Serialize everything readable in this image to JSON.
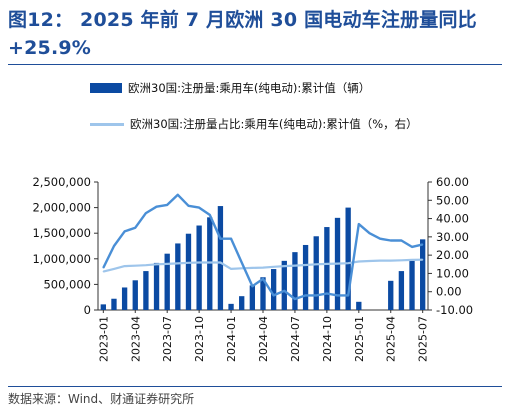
{
  "figure": {
    "title": "图12：   2025 年前 7 月欧洲 30 国电动车注册量同比 +25.9%",
    "source": "数据来源：Wind、财通证券研究所"
  },
  "chart_data": {
    "type": "bar",
    "title": "",
    "x": [
      "2023-01",
      "2023-02",
      "2023-03",
      "2023-04",
      "2023-05",
      "2023-06",
      "2023-07",
      "2023-08",
      "2023-09",
      "2023-10",
      "2023-11",
      "2023-12",
      "2024-01",
      "2024-02",
      "2024-03",
      "2024-04",
      "2024-05",
      "2024-06",
      "2024-07",
      "2024-08",
      "2024-09",
      "2024-10",
      "2024-11",
      "2024-12",
      "2025-01",
      "2025-02",
      "2025-03",
      "2025-04",
      "2025-05",
      "2025-06",
      "2025-07"
    ],
    "x_tick_labels": [
      "2023-01",
      "2023-04",
      "2023-07",
      "2023-10",
      "2024-01",
      "2024-04",
      "2024-07",
      "2024-10",
      "2025-01",
      "2025-04",
      "2025-07"
    ],
    "series": [
      {
        "name": "欧洲30国:注册量:乘用车(纯电动):累计值（辆）",
        "type": "bar",
        "axis": "left",
        "color": "#0b4aa2",
        "values": [
          110000,
          220000,
          440000,
          580000,
          760000,
          920000,
          1100000,
          1300000,
          1490000,
          1650000,
          1810000,
          2030000,
          120000,
          270000,
          480000,
          640000,
          800000,
          960000,
          1130000,
          1270000,
          1440000,
          1620000,
          1800000,
          2000000,
          160000,
          null,
          null,
          570000,
          760000,
          960000,
          1380000
        ]
      },
      {
        "name": "欧洲30国:注册量占比:乘用车(纯电动):累计值（%，右）",
        "type": "line",
        "axis": "right",
        "color": "#9ec5eb",
        "values": [
          11.0,
          12.5,
          14.0,
          14.2,
          14.5,
          15.0,
          15.2,
          15.5,
          15.8,
          16.0,
          16.0,
          16.0,
          12.5,
          12.8,
          13.0,
          13.2,
          13.6,
          14.0,
          14.3,
          14.6,
          15.0,
          15.2,
          15.4,
          15.6,
          16.5,
          16.8,
          17.0,
          17.0,
          17.2,
          17.4,
          17.5
        ]
      },
      {
        "name": "",
        "type": "line",
        "axis": "right",
        "color": "#4a8fd6",
        "values": [
          13.0,
          25.0,
          33.0,
          35.0,
          43.0,
          46.5,
          47.5,
          53.0,
          47.0,
          46.0,
          42.0,
          29.0,
          29.0,
          16.0,
          3.0,
          7.0,
          -2.0,
          0.5,
          -4.0,
          -2.0,
          -2.0,
          -1.0,
          -2.0,
          -2.0,
          37.0,
          32.0,
          29.0,
          28.0,
          28.0,
          24.5,
          25.9
        ]
      }
    ],
    "y_left": {
      "min": 0,
      "max": 2500000,
      "ticks": [
        "0",
        "500,000",
        "1,000,000",
        "1,500,000",
        "2,000,000",
        "2,500,000"
      ]
    },
    "y_right": {
      "min": -10,
      "max": 60,
      "ticks": [
        "-10.00",
        "0.00",
        "10.00",
        "20.00",
        "30.00",
        "40.00",
        "50.00",
        "60.00"
      ]
    },
    "grid": false,
    "legend": "top"
  },
  "colors": {
    "title": "#1f4e99",
    "bar": "#0b4aa2",
    "share_line": "#9ec5eb",
    "yoy_line": "#4a8fd6"
  }
}
